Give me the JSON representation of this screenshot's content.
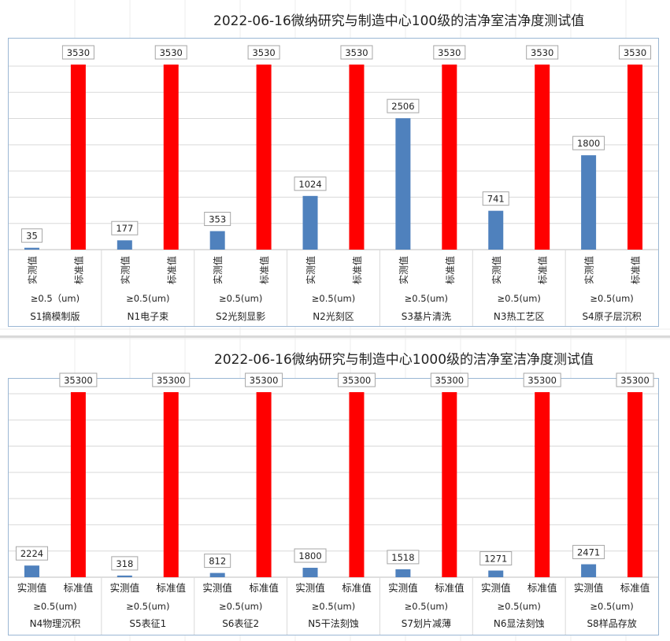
{
  "colors": {
    "actual": "#4f81bd",
    "standard": "#ff0000",
    "gridline": "#d9d9d9",
    "frame": "#9bb7d4"
  },
  "chart_data": [
    {
      "type": "bar",
      "title": "2022-06-16微纳研究与制造中心100级的洁净室洁净度测试值",
      "group_labels": [
        "S1摘模制版",
        "N1电子束",
        "S2光刻显影",
        "N2光刻区",
        "S3基片清洗",
        "N3热工艺区",
        "S4原子层沉积"
      ],
      "size_labels": [
        "≥0.5（um)",
        "≥0.5(um)",
        "≥0.5(um)",
        "≥0.5(um)",
        "≥0.5(um)",
        "≥0.5(um)",
        "≥0.5(um)"
      ],
      "bar_labels": [
        "实测值",
        "标准值"
      ],
      "series": [
        {
          "name": "实测值",
          "values": [
            35,
            177,
            353,
            1024,
            2506,
            741,
            1800
          ]
        },
        {
          "name": "标准值",
          "values": [
            3530,
            3530,
            3530,
            3530,
            3530,
            3530,
            3530
          ]
        }
      ],
      "ylim": [
        0,
        3800
      ],
      "ytick_step": 500,
      "bar_label_orientation": "vertical",
      "grid": true,
      "legend": "none"
    },
    {
      "type": "bar",
      "title": "2022-06-16微纳研究与制造中心1000级的洁净室洁净度测试值",
      "group_labels": [
        "N4物理沉积",
        "S5表征1",
        "S6表征2",
        "N5干法刻蚀",
        "S7划片减薄",
        "N6显法刻蚀",
        "S8样品存放"
      ],
      "size_labels": [
        "≥0.5(um)",
        "≥0.5(um)",
        "≥0.5(um)",
        "≥0.5(um)",
        "≥0.5(um)",
        "≥0.5(um)",
        "≥0.5(um)"
      ],
      "bar_labels": [
        "实测值",
        "标准值"
      ],
      "series": [
        {
          "name": "实测值",
          "values": [
            2224,
            318,
            812,
            1800,
            1518,
            1271,
            2471
          ]
        },
        {
          "name": "标准值",
          "values": [
            35300,
            35300,
            35300,
            35300,
            35300,
            35300,
            35300
          ]
        }
      ],
      "ylim": [
        0,
        38000
      ],
      "ytick_step": 5000,
      "bar_label_orientation": "horizontal",
      "grid": true,
      "legend": "none"
    }
  ]
}
